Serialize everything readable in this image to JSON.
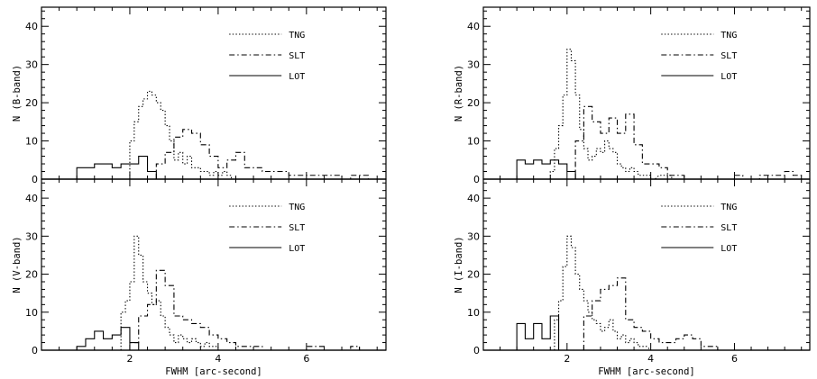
{
  "chart_data": {
    "type": "bar",
    "description_style": "step histograms",
    "xlim": [
      0,
      7.8
    ],
    "ylim": [
      0,
      45
    ],
    "xlabel": "FWHM [arc-second]",
    "xticks": [
      2,
      4,
      6
    ],
    "yticks": [
      0,
      10,
      20,
      30,
      40
    ],
    "legend_position": "top-right",
    "styles": {
      "TNG": "dotted",
      "SLT": "dash-dot",
      "LOT": "solid"
    },
    "panels": [
      {
        "id": "B",
        "ylabel": "N (B-band)",
        "series": [
          {
            "name": "TNG",
            "x": [
              2.0,
              2.1,
              2.2,
              2.3,
              2.4,
              2.5,
              2.6,
              2.7,
              2.8,
              2.9,
              3.0,
              3.1,
              3.2,
              3.3,
              3.4,
              3.5,
              3.6,
              3.7,
              3.8,
              3.9,
              4.0,
              4.1,
              4.2,
              4.3
            ],
            "y": [
              10,
              15,
              19,
              21,
              23,
              22,
              20,
              18,
              14,
              10,
              5,
              7,
              4,
              6,
              3,
              3,
              2,
              2,
              1,
              2,
              1,
              2,
              1,
              0
            ]
          },
          {
            "name": "SLT",
            "x": [
              2.6,
              2.8,
              3.0,
              3.2,
              3.4,
              3.6,
              3.8,
              4.0,
              4.2,
              4.4,
              4.6,
              4.8,
              5.0,
              5.2,
              5.4,
              5.6,
              5.8,
              6.0,
              6.2,
              6.4,
              6.6,
              6.8,
              7.0,
              7.2
            ],
            "y": [
              4,
              7,
              11,
              13,
              12,
              9,
              6,
              3,
              5,
              7,
              3,
              3,
              2,
              2,
              2,
              1,
              1,
              1,
              1,
              1,
              1,
              0,
              1,
              1
            ]
          },
          {
            "name": "LOT",
            "x": [
              0.8,
              1.0,
              1.2,
              1.4,
              1.6,
              1.8,
              2.0,
              2.2,
              2.4
            ],
            "y": [
              3,
              3,
              4,
              4,
              3,
              4,
              4,
              6,
              2
            ]
          }
        ]
      },
      {
        "id": "R",
        "ylabel": "N (R-band)",
        "series": [
          {
            "name": "TNG",
            "x": [
              1.6,
              1.7,
              1.8,
              1.9,
              2.0,
              2.1,
              2.2,
              2.3,
              2.4,
              2.5,
              2.6,
              2.7,
              2.8,
              2.9,
              3.0,
              3.1,
              3.2,
              3.3,
              3.4,
              3.5,
              3.6,
              3.7,
              3.8,
              3.9,
              4.0,
              4.2,
              4.4
            ],
            "y": [
              2,
              8,
              14,
              22,
              34,
              31,
              22,
              13,
              8,
              5,
              6,
              8,
              7,
              10,
              8,
              7,
              4,
              3,
              2,
              3,
              2,
              1,
              1,
              1,
              0,
              1,
              1
            ]
          },
          {
            "name": "SLT",
            "x": [
              2.2,
              2.4,
              2.6,
              2.8,
              3.0,
              3.2,
              3.4,
              3.6,
              3.8,
              4.0,
              4.2,
              4.4,
              4.6,
              4.8,
              5.0,
              5.2,
              5.4,
              5.6,
              5.8,
              6.0,
              6.2,
              6.4,
              6.6,
              6.8,
              7.0,
              7.2,
              7.4
            ],
            "y": [
              10,
              19,
              15,
              12,
              16,
              12,
              17,
              9,
              4,
              4,
              3,
              1,
              1,
              0,
              0,
              0,
              0,
              0,
              0,
              1,
              0,
              0,
              1,
              1,
              1,
              2,
              1
            ]
          },
          {
            "name": "LOT",
            "x": [
              0.8,
              1.0,
              1.2,
              1.4,
              1.6,
              1.8,
              2.0
            ],
            "y": [
              5,
              4,
              5,
              4,
              5,
              4,
              2
            ]
          }
        ]
      },
      {
        "id": "V",
        "ylabel": "N (V-band)",
        "series": [
          {
            "name": "TNG",
            "x": [
              1.8,
              1.9,
              2.0,
              2.1,
              2.2,
              2.3,
              2.4,
              2.5,
              2.6,
              2.7,
              2.8,
              2.9,
              3.0,
              3.1,
              3.2,
              3.3,
              3.4,
              3.5,
              3.6,
              3.7,
              3.8,
              3.9,
              4.0
            ],
            "y": [
              10,
              13,
              18,
              30,
              25,
              18,
              15,
              12,
              13,
              9,
              6,
              4,
              2,
              4,
              3,
              2,
              3,
              2,
              1,
              2,
              1,
              1,
              0
            ]
          },
          {
            "name": "SLT",
            "x": [
              2.0,
              2.2,
              2.4,
              2.6,
              2.8,
              3.0,
              3.2,
              3.4,
              3.6,
              3.8,
              4.0,
              4.2,
              4.4,
              4.6,
              4.8,
              5.0,
              5.2,
              5.4,
              5.6,
              5.8,
              6.0,
              6.2,
              6.4,
              6.6,
              6.8,
              7.0,
              7.2
            ],
            "y": [
              2,
              9,
              12,
              21,
              17,
              9,
              8,
              7,
              6,
              4,
              3,
              2,
              1,
              1,
              1,
              0,
              0,
              0,
              0,
              0,
              1,
              1,
              0,
              0,
              0,
              1,
              0
            ]
          },
          {
            "name": "LOT",
            "x": [
              0.8,
              1.0,
              1.2,
              1.4,
              1.6,
              1.8,
              2.0,
              2.2
            ],
            "y": [
              1,
              3,
              5,
              3,
              4,
              6,
              2,
              0
            ]
          }
        ]
      },
      {
        "id": "I",
        "ylabel": "N (I-band)",
        "series": [
          {
            "name": "TNG",
            "x": [
              1.7,
              1.8,
              1.9,
              2.0,
              2.1,
              2.2,
              2.3,
              2.4,
              2.5,
              2.6,
              2.7,
              2.8,
              2.9,
              3.0,
              3.1,
              3.2,
              3.3,
              3.4,
              3.5,
              3.6,
              3.7,
              3.8,
              4.0
            ],
            "y": [
              8,
              13,
              22,
              30,
              27,
              20,
              16,
              13,
              10,
              8,
              7,
              5,
              6,
              8,
              5,
              3,
              4,
              2,
              3,
              2,
              1,
              1,
              0
            ]
          },
          {
            "name": "SLT",
            "x": [
              2.4,
              2.6,
              2.8,
              3.0,
              3.2,
              3.4,
              3.6,
              3.8,
              4.0,
              4.2,
              4.4,
              4.6,
              4.8,
              5.0,
              5.2,
              5.4,
              5.6
            ],
            "y": [
              9,
              13,
              16,
              17,
              19,
              8,
              6,
              5,
              3,
              2,
              2,
              3,
              4,
              3,
              1,
              1,
              0
            ]
          },
          {
            "name": "LOT",
            "x": [
              0.8,
              1.0,
              1.2,
              1.4,
              1.6,
              1.8,
              2.0
            ],
            "y": [
              7,
              3,
              7,
              3,
              9,
              0,
              0
            ]
          }
        ]
      }
    ]
  },
  "legend": {
    "items": [
      {
        "label": "TNG",
        "style": "dotted"
      },
      {
        "label": "SLT",
        "style": "dash-dot"
      },
      {
        "label": "LOT",
        "style": "solid"
      }
    ]
  },
  "xlabel": "FWHM [arc-second]"
}
